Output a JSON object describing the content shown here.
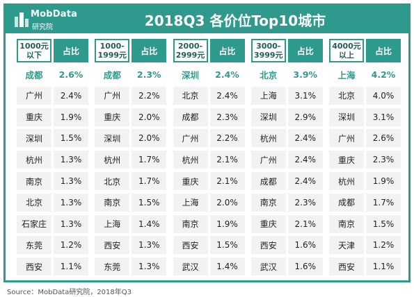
{
  "header": {
    "brand": "MobData",
    "brand_sub": "研究院",
    "title": "2018Q3  各价位Top10城市"
  },
  "source": "Source：MobData研究院，2018年Q3",
  "colors": {
    "accent": "#2e9a8e",
    "cell_bg": "#f2f2f2",
    "text": "#222222"
  },
  "chart_data": {
    "type": "table",
    "title": "2018Q3  各价位Top10城市",
    "value_header": "占比",
    "tiers": [
      {
        "range": [
          "1000元",
          "以下"
        ],
        "cities": [
          "成都",
          "广州",
          "重庆",
          "深圳",
          "杭州",
          "南京",
          "北京",
          "石家庄",
          "东莞",
          "西安"
        ],
        "values": [
          "2.6%",
          "2.4%",
          "1.9%",
          "1.5%",
          "1.3%",
          "1.3%",
          "1.3%",
          "1.3%",
          "1.2%",
          "1.1%"
        ]
      },
      {
        "range": [
          "1000-",
          "1999元"
        ],
        "cities": [
          "成都",
          "广州",
          "重庆",
          "深圳",
          "杭州",
          "北京",
          "南京",
          "上海",
          "西安",
          "东莞"
        ],
        "values": [
          "2.3%",
          "2.2%",
          "2.0%",
          "2.0%",
          "1.7%",
          "1.7%",
          "1.5%",
          "1.4%",
          "1.3%",
          "1.3%"
        ]
      },
      {
        "range": [
          "2000-",
          "2999元"
        ],
        "cities": [
          "深圳",
          "北京",
          "成都",
          "广州",
          "杭州",
          "重庆",
          "上海",
          "南京",
          "西安",
          "武汉"
        ],
        "values": [
          "2.4%",
          "2.4%",
          "2.3%",
          "2.2%",
          "2.1%",
          "2.1%",
          "2.0%",
          "1.9%",
          "1.5%",
          "1.4%"
        ]
      },
      {
        "range": [
          "3000-",
          "3999元"
        ],
        "cities": [
          "北京",
          "上海",
          "深圳",
          "杭州",
          "广州",
          "成都",
          "南京",
          "重庆",
          "西安",
          "武汉"
        ],
        "values": [
          "3.9%",
          "3.1%",
          "2.9%",
          "2.4%",
          "2.4%",
          "2.4%",
          "2.3%",
          "2.1%",
          "1.6%",
          "1.6%"
        ]
      },
      {
        "range": [
          "4000元",
          "以上"
        ],
        "cities": [
          "上海",
          "北京",
          "深圳",
          "广州",
          "重庆",
          "杭州",
          "成都",
          "南京",
          "天津",
          "西安"
        ],
        "values": [
          "4.2%",
          "4.0%",
          "3.1%",
          "2.6%",
          "2.3%",
          "1.9%",
          "1.7%",
          "1.5%",
          "1.2%",
          "1.1%"
        ]
      }
    ]
  }
}
